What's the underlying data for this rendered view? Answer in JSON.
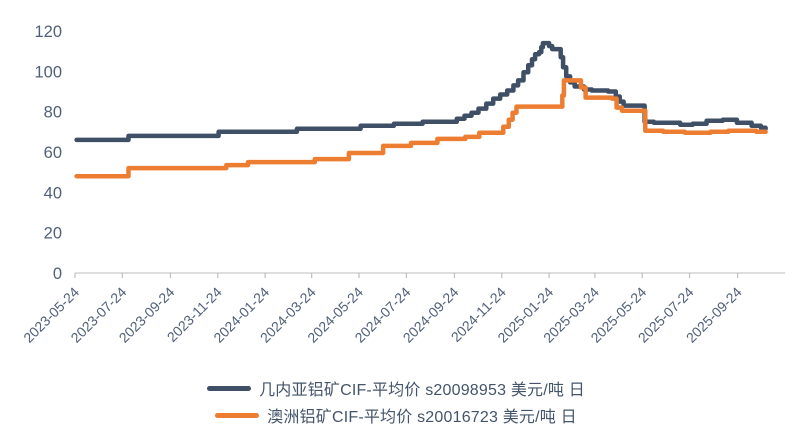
{
  "colors": {
    "series_guinea": "#3E4F66",
    "series_australia": "#ED7D31",
    "axis_line": "#C9CBCD",
    "tick_mark": "#BFBFBF",
    "axis_text": "#51607A",
    "legend_text": "#44546A",
    "background": "#FFFFFF"
  },
  "legend": {
    "items": [
      {
        "label": "几内亚铝矿CIF-平均价 s20098953 美元/吨 日",
        "color": "#3E4F66"
      },
      {
        "label": "澳洲铝矿CIF-平均价 s20016723 美元/吨 日",
        "color": "#ED7D31"
      }
    ]
  },
  "chart_data": {
    "type": "line",
    "title": "",
    "xlabel": "",
    "ylabel": "",
    "grid": false,
    "legend_position": "bottom",
    "interpolation": "step-after",
    "x_domain": [
      "2023-05-24",
      "2025-11-24"
    ],
    "x_tick_labels": [
      "2023-05-24",
      "2023-07-24",
      "2023-09-24",
      "2023-11-24",
      "2024-01-24",
      "2024-03-24",
      "2024-05-24",
      "2024-07-24",
      "2024-09-24",
      "2024-11-24",
      "2025-01-24",
      "2025-03-24",
      "2025-05-24",
      "2025-07-24",
      "2025-09-24"
    ],
    "ylim": [
      0,
      120
    ],
    "yticks": [
      0,
      20,
      40,
      60,
      80,
      100,
      120
    ],
    "series": [
      {
        "name": "几内亚铝矿CIF-平均价 s20098953 美元/吨 日",
        "color": "#3E4F66",
        "points": [
          [
            "2023-05-26",
            66
          ],
          [
            "2023-08-01",
            68
          ],
          [
            "2023-11-25",
            70
          ],
          [
            "2024-03-05",
            71.5
          ],
          [
            "2024-05-26",
            73
          ],
          [
            "2024-07-08",
            74
          ],
          [
            "2024-08-14",
            75
          ],
          [
            "2024-09-27",
            76.5
          ],
          [
            "2024-10-07",
            78
          ],
          [
            "2024-10-16",
            79.5
          ],
          [
            "2024-10-25",
            81.5
          ],
          [
            "2024-11-04",
            84
          ],
          [
            "2024-11-13",
            86.5
          ],
          [
            "2024-11-22",
            88.5
          ],
          [
            "2024-12-01",
            90.5
          ],
          [
            "2024-12-09",
            93
          ],
          [
            "2024-12-15",
            95.5
          ],
          [
            "2024-12-22",
            99.5
          ],
          [
            "2024-12-28",
            103
          ],
          [
            "2025-01-02",
            106
          ],
          [
            "2025-01-06",
            108.5
          ],
          [
            "2025-01-11",
            109.5
          ],
          [
            "2025-01-14",
            112
          ],
          [
            "2025-01-16",
            114
          ],
          [
            "2025-01-24",
            112.5
          ],
          [
            "2025-01-28",
            111
          ],
          [
            "2025-02-08",
            107
          ],
          [
            "2025-02-11",
            102
          ],
          [
            "2025-02-15",
            97.5
          ],
          [
            "2025-02-20",
            94.5
          ],
          [
            "2025-02-26",
            92.5
          ],
          [
            "2025-03-10",
            91
          ],
          [
            "2025-03-20",
            90.5
          ],
          [
            "2025-04-10",
            90
          ],
          [
            "2025-04-20",
            87.5
          ],
          [
            "2025-04-25",
            85
          ],
          [
            "2025-04-30",
            83
          ],
          [
            "2025-05-27",
            75
          ],
          [
            "2025-06-08",
            74.5
          ],
          [
            "2025-07-12",
            73.5
          ],
          [
            "2025-07-28",
            74
          ],
          [
            "2025-08-15",
            75.5
          ],
          [
            "2025-09-05",
            76
          ],
          [
            "2025-09-23",
            74.5
          ],
          [
            "2025-10-12",
            73
          ],
          [
            "2025-10-24",
            72
          ],
          [
            "2025-10-30",
            71.5
          ]
        ]
      },
      {
        "name": "澳洲铝矿CIF-平均价 s20016723 美元/吨 日",
        "color": "#ED7D31",
        "points": [
          [
            "2023-05-26",
            48
          ],
          [
            "2023-08-01",
            52
          ],
          [
            "2023-12-05",
            53.5
          ],
          [
            "2024-01-02",
            55
          ],
          [
            "2024-03-28",
            56.5
          ],
          [
            "2024-05-11",
            59.5
          ],
          [
            "2024-06-24",
            63
          ],
          [
            "2024-07-30",
            64.5
          ],
          [
            "2024-09-02",
            66.5
          ],
          [
            "2024-10-08",
            67.5
          ],
          [
            "2024-10-26",
            69.5
          ],
          [
            "2024-11-26",
            72.5
          ],
          [
            "2024-12-03",
            76
          ],
          [
            "2024-12-08",
            79.5
          ],
          [
            "2024-12-13",
            82.5
          ],
          [
            "2025-02-10",
            88
          ],
          [
            "2025-02-12",
            95.5
          ],
          [
            "2025-03-06",
            92
          ],
          [
            "2025-03-12",
            87
          ],
          [
            "2025-04-15",
            86.5
          ],
          [
            "2025-04-21",
            82
          ],
          [
            "2025-04-28",
            80.5
          ],
          [
            "2025-05-28",
            70.5
          ],
          [
            "2025-06-20",
            70
          ],
          [
            "2025-07-18",
            69.5
          ],
          [
            "2025-08-20",
            70
          ],
          [
            "2025-09-12",
            70.5
          ],
          [
            "2025-10-18",
            70
          ],
          [
            "2025-10-30",
            70
          ]
        ]
      }
    ]
  }
}
